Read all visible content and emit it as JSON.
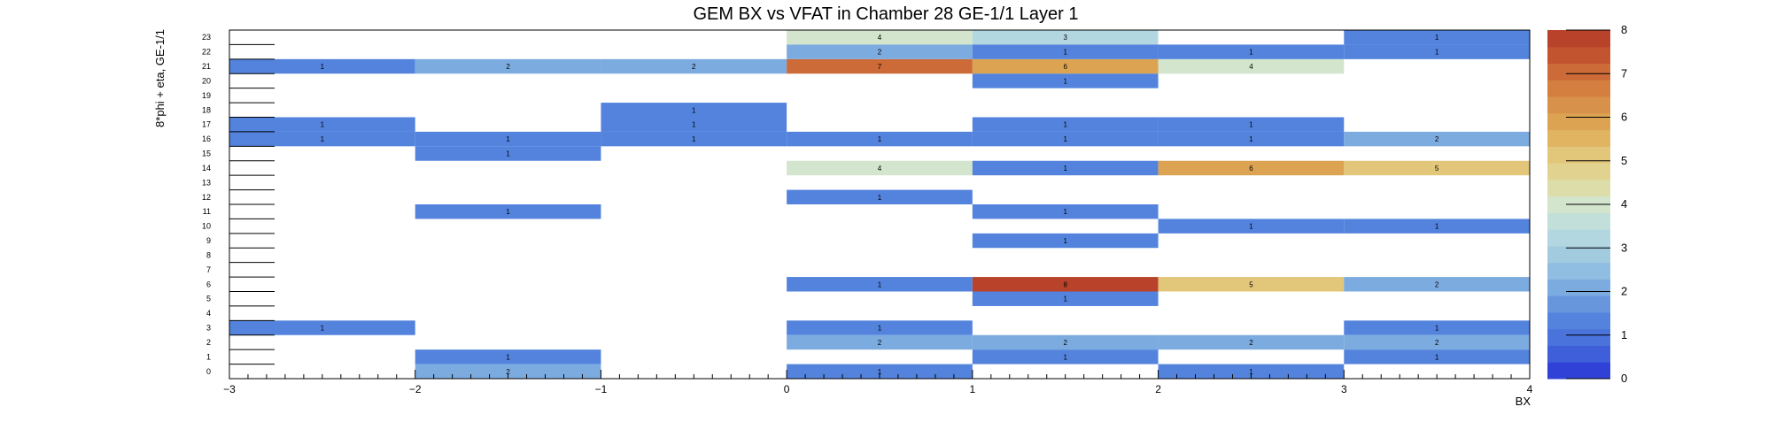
{
  "chart_data": {
    "type": "heatmap",
    "title": "GEM BX vs VFAT in Chamber 28 GE-1/1 Layer 1",
    "xlabel": "BX",
    "ylabel": "8*phi + eta, GE-1/1",
    "xlim": [
      -3,
      4
    ],
    "ylim": [
      0,
      24
    ],
    "x_ticks": [
      "−3",
      "−2",
      "−1",
      "0",
      "1",
      "2",
      "3",
      "4"
    ],
    "y_ticks": [
      "0",
      "1",
      "2",
      "3",
      "4",
      "5",
      "6",
      "7",
      "8",
      "9",
      "10",
      "11",
      "12",
      "13",
      "14",
      "15",
      "16",
      "17",
      "18",
      "19",
      "20",
      "21",
      "22",
      "23"
    ],
    "z_range": [
      0,
      8
    ],
    "colorbar_ticks": [
      "0",
      "1",
      "2",
      "3",
      "4",
      "5",
      "6",
      "7",
      "8"
    ],
    "palette": [
      "#2f41d6",
      "#3f5ed9",
      "#4a73db",
      "#5383dd",
      "#6796dd",
      "#7cabe0",
      "#90bde2",
      "#a2cbe0",
      "#b3d7e0",
      "#c3dfd9",
      "#d3e5cc",
      "#ddddaa",
      "#e1d38f",
      "#e2c67a",
      "#e0b460",
      "#dca452",
      "#d8914a",
      "#d47f40",
      "#cc6a38",
      "#c25430",
      "#b8422a"
    ],
    "cells": [
      {
        "bx": -3,
        "vfat": 21,
        "value": 1
      },
      {
        "bx": -2,
        "vfat": 21,
        "value": 2
      },
      {
        "bx": -1,
        "vfat": 21,
        "value": 2
      },
      {
        "bx": 0,
        "vfat": 21,
        "value": 7
      },
      {
        "bx": 1,
        "vfat": 21,
        "value": 6
      },
      {
        "bx": 2,
        "vfat": 21,
        "value": 4
      },
      {
        "bx": 0,
        "vfat": 23,
        "value": 4
      },
      {
        "bx": 1,
        "vfat": 23,
        "value": 3
      },
      {
        "bx": 3,
        "vfat": 23,
        "value": 1
      },
      {
        "bx": 0,
        "vfat": 22,
        "value": 2
      },
      {
        "bx": 1,
        "vfat": 22,
        "value": 1
      },
      {
        "bx": 2,
        "vfat": 22,
        "value": 1
      },
      {
        "bx": 3,
        "vfat": 22,
        "value": 1
      },
      {
        "bx": 1,
        "vfat": 20,
        "value": 1
      },
      {
        "bx": -1,
        "vfat": 18,
        "value": 1
      },
      {
        "bx": -3,
        "vfat": 17,
        "value": 1
      },
      {
        "bx": -1,
        "vfat": 17,
        "value": 1
      },
      {
        "bx": 1,
        "vfat": 17,
        "value": 1
      },
      {
        "bx": 2,
        "vfat": 17,
        "value": 1
      },
      {
        "bx": -3,
        "vfat": 16,
        "value": 1
      },
      {
        "bx": -2,
        "vfat": 16,
        "value": 1
      },
      {
        "bx": -1,
        "vfat": 16,
        "value": 1
      },
      {
        "bx": 0,
        "vfat": 16,
        "value": 1
      },
      {
        "bx": 1,
        "vfat": 16,
        "value": 1
      },
      {
        "bx": 2,
        "vfat": 16,
        "value": 1
      },
      {
        "bx": 3,
        "vfat": 16,
        "value": 2
      },
      {
        "bx": -2,
        "vfat": 15,
        "value": 1
      },
      {
        "bx": 0,
        "vfat": 14,
        "value": 4
      },
      {
        "bx": 1,
        "vfat": 14,
        "value": 1
      },
      {
        "bx": 2,
        "vfat": 14,
        "value": 6
      },
      {
        "bx": 3,
        "vfat": 14,
        "value": 5
      },
      {
        "bx": 0,
        "vfat": 12,
        "value": 1
      },
      {
        "bx": -2,
        "vfat": 11,
        "value": 1
      },
      {
        "bx": 1,
        "vfat": 11,
        "value": 1
      },
      {
        "bx": 2,
        "vfat": 10,
        "value": 1
      },
      {
        "bx": 3,
        "vfat": 10,
        "value": 1
      },
      {
        "bx": 1,
        "vfat": 9,
        "value": 1
      },
      {
        "bx": 0,
        "vfat": 6,
        "value": 1
      },
      {
        "bx": 1,
        "vfat": 6,
        "value": 8
      },
      {
        "bx": 2,
        "vfat": 6,
        "value": 5
      },
      {
        "bx": 3,
        "vfat": 6,
        "value": 2
      },
      {
        "bx": 1,
        "vfat": 5,
        "value": 1
      },
      {
        "bx": -3,
        "vfat": 3,
        "value": 1
      },
      {
        "bx": 0,
        "vfat": 3,
        "value": 1
      },
      {
        "bx": 3,
        "vfat": 3,
        "value": 1
      },
      {
        "bx": 0,
        "vfat": 2,
        "value": 2
      },
      {
        "bx": 1,
        "vfat": 2,
        "value": 2
      },
      {
        "bx": 2,
        "vfat": 2,
        "value": 2
      },
      {
        "bx": 3,
        "vfat": 2,
        "value": 2
      },
      {
        "bx": -2,
        "vfat": 1,
        "value": 1
      },
      {
        "bx": 1,
        "vfat": 1,
        "value": 1
      },
      {
        "bx": 3,
        "vfat": 1,
        "value": 1
      },
      {
        "bx": -2,
        "vfat": 0,
        "value": 2
      },
      {
        "bx": 0,
        "vfat": 0,
        "value": 1
      },
      {
        "bx": 2,
        "vfat": 0,
        "value": 1
      }
    ]
  }
}
